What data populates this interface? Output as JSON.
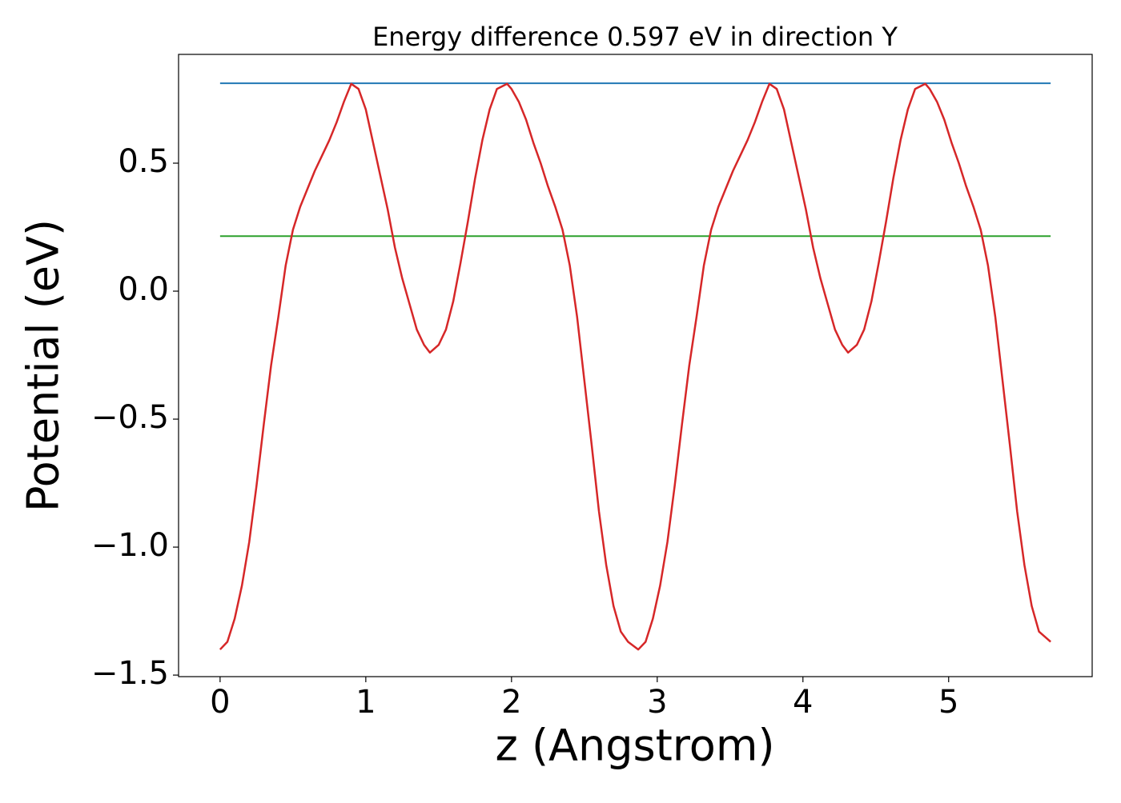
{
  "chart_data": {
    "type": "line",
    "title": "Energy difference 0.597 eV in direction Y",
    "xlabel": "z (Angstrom)",
    "ylabel": "Potential (eV)",
    "x": [
      0,
      0.05,
      0.1,
      0.15,
      0.2,
      0.25,
      0.3,
      0.35,
      0.4,
      0.45,
      0.5,
      0.55,
      0.6,
      0.65,
      0.7,
      0.75,
      0.8,
      0.85,
      0.9,
      0.95,
      1.0,
      1.05,
      1.1,
      1.15,
      1.2,
      1.25,
      1.3,
      1.35,
      1.4,
      1.44,
      1.5,
      1.55,
      1.6,
      1.65,
      1.7,
      1.75,
      1.8,
      1.85,
      1.9,
      1.97,
      2.0,
      2.05,
      2.1,
      2.15,
      2.2,
      2.25,
      2.3,
      2.35,
      2.4,
      2.45,
      2.5,
      2.55,
      2.6,
      2.65,
      2.7,
      2.75,
      2.8,
      2.87,
      2.92,
      2.97,
      3.02,
      3.07,
      3.12,
      3.17,
      3.22,
      3.27,
      3.32,
      3.37,
      3.42,
      3.47,
      3.52,
      3.57,
      3.62,
      3.67,
      3.72,
      3.77,
      3.82,
      3.87,
      3.92,
      3.97,
      4.02,
      4.07,
      4.12,
      4.17,
      4.22,
      4.27,
      4.31,
      4.37,
      4.42,
      4.47,
      4.52,
      4.57,
      4.62,
      4.67,
      4.72,
      4.77,
      4.84,
      4.87,
      4.92,
      4.97,
      5.02,
      5.07,
      5.12,
      5.17,
      5.22,
      5.27,
      5.32,
      5.37,
      5.42,
      5.47,
      5.52,
      5.57,
      5.62,
      5.7
    ],
    "series": [
      {
        "color": "#d62728",
        "values": [
          -1.4,
          -1.37,
          -1.28,
          -1.15,
          -0.98,
          -0.76,
          -0.52,
          -0.29,
          -0.1,
          0.1,
          0.24,
          0.33,
          0.4,
          0.47,
          0.53,
          0.59,
          0.66,
          0.74,
          0.81,
          0.79,
          0.71,
          0.58,
          0.45,
          0.32,
          0.17,
          0.05,
          -0.05,
          -0.15,
          -0.21,
          -0.24,
          -0.21,
          -0.15,
          -0.04,
          0.11,
          0.27,
          0.44,
          0.59,
          0.71,
          0.79,
          0.81,
          0.79,
          0.74,
          0.67,
          0.58,
          0.5,
          0.41,
          0.33,
          0.24,
          0.1,
          -0.1,
          -0.35,
          -0.6,
          -0.86,
          -1.07,
          -1.23,
          -1.33,
          -1.37,
          -1.4,
          -1.37,
          -1.28,
          -1.15,
          -0.98,
          -0.76,
          -0.52,
          -0.29,
          -0.1,
          0.1,
          0.24,
          0.33,
          0.4,
          0.47,
          0.53,
          0.59,
          0.66,
          0.74,
          0.81,
          0.79,
          0.71,
          0.58,
          0.45,
          0.32,
          0.17,
          0.05,
          -0.05,
          -0.15,
          -0.21,
          -0.24,
          -0.21,
          -0.15,
          -0.04,
          0.11,
          0.27,
          0.44,
          0.59,
          0.71,
          0.79,
          0.81,
          0.79,
          0.74,
          0.67,
          0.58,
          0.5,
          0.41,
          0.33,
          0.24,
          0.1,
          -0.1,
          -0.35,
          -0.6,
          -0.86,
          -1.07,
          -1.23,
          -1.33,
          -1.37
        ]
      }
    ],
    "hlines": [
      {
        "value": 0.812,
        "color": "#1f77b4",
        "xrange": [
          0,
          5.7
        ]
      },
      {
        "value": 0.215,
        "color": "#2ca02c",
        "xrange": [
          0,
          5.7
        ]
      }
    ],
    "xlim": [
      -0.285,
      5.985
    ],
    "ylim": [
      -1.506,
      0.925
    ],
    "xticks": [
      0,
      1,
      2,
      3,
      4,
      5
    ],
    "yticks": [
      {
        "value": -1.5,
        "label": "−1.5"
      },
      {
        "value": -1.0,
        "label": "−1.0"
      },
      {
        "value": -0.5,
        "label": "−0.5"
      },
      {
        "value": 0,
        "label": "0.0"
      },
      0.5
    ]
  }
}
